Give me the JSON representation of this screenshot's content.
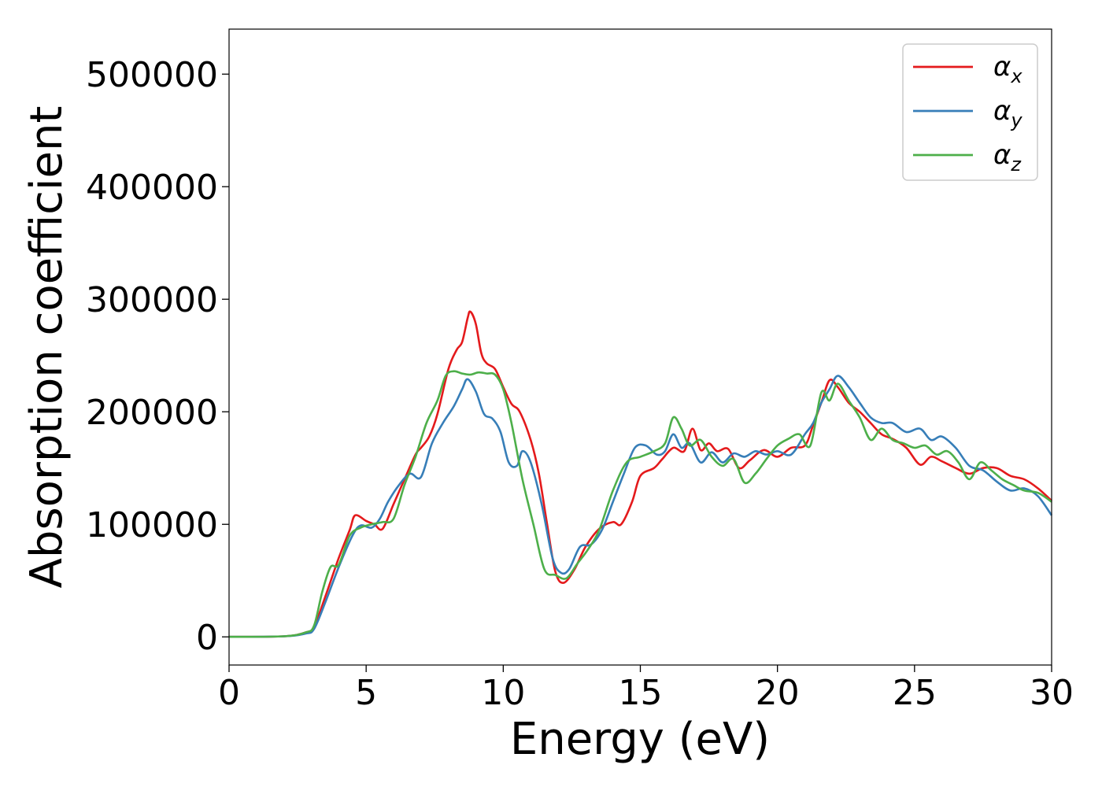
{
  "chart_data": {
    "type": "line",
    "title": "",
    "xlabel": "Energy (eV)",
    "ylabel": "Absorption coefficient",
    "xlim": [
      0,
      30
    ],
    "ylim": [
      -25000,
      540000
    ],
    "xticks": [
      0,
      5,
      10,
      15,
      20,
      25,
      30
    ],
    "yticks": [
      0,
      100000,
      200000,
      300000,
      400000,
      500000
    ],
    "xtick_labels": [
      "0",
      "5",
      "10",
      "15",
      "20",
      "25",
      "30"
    ],
    "ytick_labels": [
      "0",
      "100000",
      "200000",
      "300000",
      "400000",
      "500000"
    ],
    "grid": false,
    "legend_position": "top-right",
    "series": [
      {
        "name": "α",
        "subscript": "x",
        "color": "#e41a1c",
        "points": [
          [
            0,
            0
          ],
          [
            2,
            500
          ],
          [
            2.8,
            4000
          ],
          [
            3.1,
            9000
          ],
          [
            3.5,
            35000
          ],
          [
            4.0,
            70000
          ],
          [
            4.4,
            95000
          ],
          [
            4.6,
            108000
          ],
          [
            5.0,
            103000
          ],
          [
            5.3,
            100000
          ],
          [
            5.6,
            96000
          ],
          [
            6.0,
            118000
          ],
          [
            6.4,
            140000
          ],
          [
            6.8,
            162000
          ],
          [
            7.0,
            168000
          ],
          [
            7.3,
            178000
          ],
          [
            7.6,
            198000
          ],
          [
            8.0,
            238000
          ],
          [
            8.3,
            255000
          ],
          [
            8.5,
            262000
          ],
          [
            8.7,
            283000
          ],
          [
            8.8,
            289000
          ],
          [
            9.0,
            278000
          ],
          [
            9.2,
            252000
          ],
          [
            9.4,
            243000
          ],
          [
            9.7,
            238000
          ],
          [
            10.0,
            222000
          ],
          [
            10.3,
            207000
          ],
          [
            10.6,
            200000
          ],
          [
            11.0,
            175000
          ],
          [
            11.3,
            145000
          ],
          [
            11.6,
            100000
          ],
          [
            11.9,
            58000
          ],
          [
            12.2,
            48000
          ],
          [
            12.6,
            60000
          ],
          [
            13.0,
            80000
          ],
          [
            13.5,
            96000
          ],
          [
            14.0,
            102000
          ],
          [
            14.3,
            100000
          ],
          [
            14.7,
            120000
          ],
          [
            15.0,
            143000
          ],
          [
            15.5,
            150000
          ],
          [
            15.8,
            158000
          ],
          [
            16.2,
            168000
          ],
          [
            16.6,
            165000
          ],
          [
            16.9,
            185000
          ],
          [
            17.2,
            166000
          ],
          [
            17.5,
            172000
          ],
          [
            17.8,
            165000
          ],
          [
            18.2,
            167000
          ],
          [
            18.6,
            150000
          ],
          [
            19.0,
            157000
          ],
          [
            19.5,
            166000
          ],
          [
            20.0,
            160000
          ],
          [
            20.5,
            168000
          ],
          [
            21.0,
            170000
          ],
          [
            21.3,
            188000
          ],
          [
            21.6,
            208000
          ],
          [
            21.9,
            228000
          ],
          [
            22.2,
            222000
          ],
          [
            22.6,
            208000
          ],
          [
            23.0,
            200000
          ],
          [
            23.4,
            190000
          ],
          [
            23.8,
            180000
          ],
          [
            24.2,
            176000
          ],
          [
            24.7,
            168000
          ],
          [
            25.2,
            153000
          ],
          [
            25.6,
            160000
          ],
          [
            26.0,
            156000
          ],
          [
            26.5,
            150000
          ],
          [
            27.0,
            145000
          ],
          [
            27.5,
            150000
          ],
          [
            28.0,
            150000
          ],
          [
            28.5,
            143000
          ],
          [
            29.0,
            140000
          ],
          [
            29.5,
            132000
          ],
          [
            30.0,
            121000
          ]
        ]
      },
      {
        "name": "α",
        "subscript": "y",
        "color": "#377eb8",
        "points": [
          [
            0,
            0
          ],
          [
            2,
            500
          ],
          [
            2.8,
            3000
          ],
          [
            3.1,
            7000
          ],
          [
            3.5,
            30000
          ],
          [
            4.0,
            62000
          ],
          [
            4.5,
            90000
          ],
          [
            4.8,
            99000
          ],
          [
            5.2,
            97000
          ],
          [
            5.5,
            105000
          ],
          [
            5.8,
            120000
          ],
          [
            6.2,
            135000
          ],
          [
            6.6,
            145000
          ],
          [
            7.0,
            142000
          ],
          [
            7.4,
            172000
          ],
          [
            7.8,
            190000
          ],
          [
            8.2,
            205000
          ],
          [
            8.5,
            220000
          ],
          [
            8.7,
            229000
          ],
          [
            9.0,
            218000
          ],
          [
            9.3,
            198000
          ],
          [
            9.6,
            194000
          ],
          [
            9.9,
            182000
          ],
          [
            10.2,
            155000
          ],
          [
            10.5,
            152000
          ],
          [
            10.7,
            165000
          ],
          [
            11.0,
            155000
          ],
          [
            11.4,
            118000
          ],
          [
            11.8,
            70000
          ],
          [
            12.1,
            57000
          ],
          [
            12.4,
            60000
          ],
          [
            12.8,
            80000
          ],
          [
            13.2,
            82000
          ],
          [
            13.6,
            95000
          ],
          [
            14.0,
            120000
          ],
          [
            14.4,
            145000
          ],
          [
            14.8,
            168000
          ],
          [
            15.2,
            170000
          ],
          [
            15.6,
            162000
          ],
          [
            15.9,
            165000
          ],
          [
            16.2,
            180000
          ],
          [
            16.5,
            168000
          ],
          [
            16.8,
            172000
          ],
          [
            17.2,
            155000
          ],
          [
            17.6,
            164000
          ],
          [
            18.0,
            155000
          ],
          [
            18.4,
            163000
          ],
          [
            18.8,
            160000
          ],
          [
            19.2,
            165000
          ],
          [
            19.6,
            162000
          ],
          [
            20.0,
            165000
          ],
          [
            20.5,
            162000
          ],
          [
            21.0,
            180000
          ],
          [
            21.3,
            190000
          ],
          [
            21.6,
            208000
          ],
          [
            21.9,
            220000
          ],
          [
            22.2,
            232000
          ],
          [
            22.6,
            222000
          ],
          [
            23.0,
            208000
          ],
          [
            23.4,
            195000
          ],
          [
            23.8,
            190000
          ],
          [
            24.2,
            190000
          ],
          [
            24.7,
            182000
          ],
          [
            25.2,
            185000
          ],
          [
            25.6,
            175000
          ],
          [
            26.0,
            178000
          ],
          [
            26.5,
            168000
          ],
          [
            27.0,
            152000
          ],
          [
            27.5,
            148000
          ],
          [
            28.0,
            138000
          ],
          [
            28.5,
            130000
          ],
          [
            29.0,
            132000
          ],
          [
            29.5,
            125000
          ],
          [
            30.0,
            108000
          ]
        ]
      },
      {
        "name": "α",
        "subscript": "z",
        "color": "#4daf4a",
        "points": [
          [
            0,
            0
          ],
          [
            2,
            500
          ],
          [
            2.8,
            4000
          ],
          [
            3.1,
            10000
          ],
          [
            3.4,
            40000
          ],
          [
            3.7,
            62000
          ],
          [
            4.0,
            64000
          ],
          [
            4.4,
            90000
          ],
          [
            4.8,
            97000
          ],
          [
            5.2,
            100000
          ],
          [
            5.6,
            102000
          ],
          [
            6.0,
            105000
          ],
          [
            6.4,
            135000
          ],
          [
            6.8,
            160000
          ],
          [
            7.2,
            190000
          ],
          [
            7.6,
            210000
          ],
          [
            7.9,
            232000
          ],
          [
            8.2,
            236000
          ],
          [
            8.5,
            234000
          ],
          [
            8.8,
            233000
          ],
          [
            9.1,
            235000
          ],
          [
            9.4,
            234000
          ],
          [
            9.7,
            233000
          ],
          [
            10.0,
            220000
          ],
          [
            10.3,
            190000
          ],
          [
            10.7,
            140000
          ],
          [
            11.1,
            100000
          ],
          [
            11.5,
            60000
          ],
          [
            11.9,
            55000
          ],
          [
            12.3,
            52000
          ],
          [
            12.7,
            65000
          ],
          [
            13.1,
            78000
          ],
          [
            13.5,
            95000
          ],
          [
            14.0,
            130000
          ],
          [
            14.5,
            155000
          ],
          [
            15.0,
            160000
          ],
          [
            15.5,
            165000
          ],
          [
            15.9,
            172000
          ],
          [
            16.2,
            195000
          ],
          [
            16.5,
            185000
          ],
          [
            16.8,
            170000
          ],
          [
            17.2,
            175000
          ],
          [
            17.6,
            160000
          ],
          [
            18.0,
            152000
          ],
          [
            18.4,
            158000
          ],
          [
            18.8,
            137000
          ],
          [
            19.2,
            145000
          ],
          [
            19.6,
            158000
          ],
          [
            20.0,
            170000
          ],
          [
            20.4,
            176000
          ],
          [
            20.8,
            180000
          ],
          [
            21.2,
            170000
          ],
          [
            21.6,
            217000
          ],
          [
            21.9,
            210000
          ],
          [
            22.2,
            225000
          ],
          [
            22.6,
            210000
          ],
          [
            23.0,
            195000
          ],
          [
            23.4,
            175000
          ],
          [
            23.8,
            185000
          ],
          [
            24.2,
            175000
          ],
          [
            24.6,
            172000
          ],
          [
            25.0,
            168000
          ],
          [
            25.4,
            170000
          ],
          [
            25.8,
            162000
          ],
          [
            26.2,
            165000
          ],
          [
            26.6,
            155000
          ],
          [
            27.0,
            140000
          ],
          [
            27.4,
            155000
          ],
          [
            27.8,
            148000
          ],
          [
            28.2,
            140000
          ],
          [
            28.6,
            135000
          ],
          [
            29.0,
            130000
          ],
          [
            29.5,
            128000
          ],
          [
            30.0,
            120000
          ]
        ]
      }
    ]
  }
}
